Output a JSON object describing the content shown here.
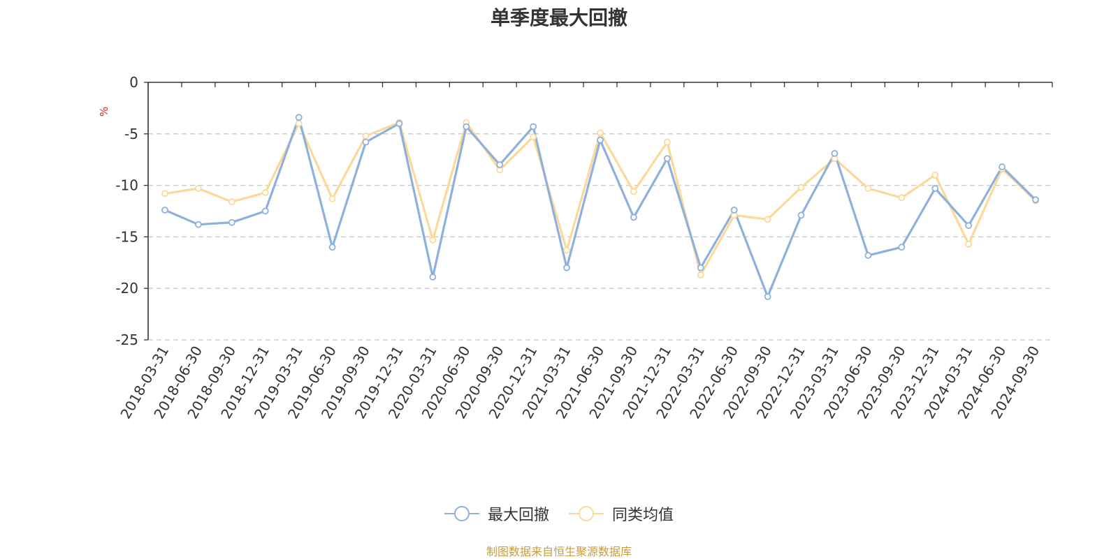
{
  "title": "单季度最大回撤",
  "source": "制图数据来自恒生聚源数据库",
  "colors": {
    "series1": "#8eb0dc",
    "series2": "#fcd99a",
    "grid": "#c8c8c8",
    "axis": "#333333",
    "unit": "#e02020"
  },
  "chart_data": {
    "type": "line",
    "title": "单季度最大回撤",
    "ylabel": "%",
    "ylim": [
      -25,
      0
    ],
    "yticks": [
      0,
      -5,
      -10,
      -15,
      -20,
      -25
    ],
    "grid": "horizontal-dashed",
    "legend_position": "bottom",
    "categories": [
      "2018-03-31",
      "2018-06-30",
      "2018-09-30",
      "2018-12-31",
      "2019-03-31",
      "2019-06-30",
      "2019-09-30",
      "2019-12-31",
      "2020-03-31",
      "2020-06-30",
      "2020-09-30",
      "2020-12-31",
      "2021-03-31",
      "2021-06-30",
      "2021-09-30",
      "2021-12-31",
      "2022-03-31",
      "2022-06-30",
      "2022-09-30",
      "2022-12-31",
      "2023-03-31",
      "2023-06-30",
      "2023-09-30",
      "2023-12-31",
      "2024-03-31",
      "2024-06-30",
      "2024-09-30"
    ],
    "series": [
      {
        "name": "最大回撤",
        "values": [
          -12.4,
          -13.8,
          -13.6,
          -12.5,
          -3.4,
          -16.0,
          -5.8,
          -4.0,
          -18.9,
          -4.3,
          -8.0,
          -4.3,
          -18.0,
          -5.6,
          -13.1,
          -7.4,
          -18.0,
          -12.4,
          -20.8,
          -12.9,
          -6.9,
          -16.8,
          -16.0,
          -10.3,
          -13.9,
          -8.2,
          -11.4
        ]
      },
      {
        "name": "同类均值",
        "values": [
          -10.8,
          -10.3,
          -11.6,
          -10.7,
          -4.0,
          -11.3,
          -5.2,
          -3.9,
          -15.3,
          -3.9,
          -8.5,
          -5.3,
          -16.3,
          -4.9,
          -10.6,
          -5.8,
          -18.7,
          -12.9,
          -13.3,
          -10.2,
          -7.4,
          -10.3,
          -11.2,
          -9.0,
          -15.7,
          -8.4,
          -11.5
        ]
      }
    ]
  }
}
